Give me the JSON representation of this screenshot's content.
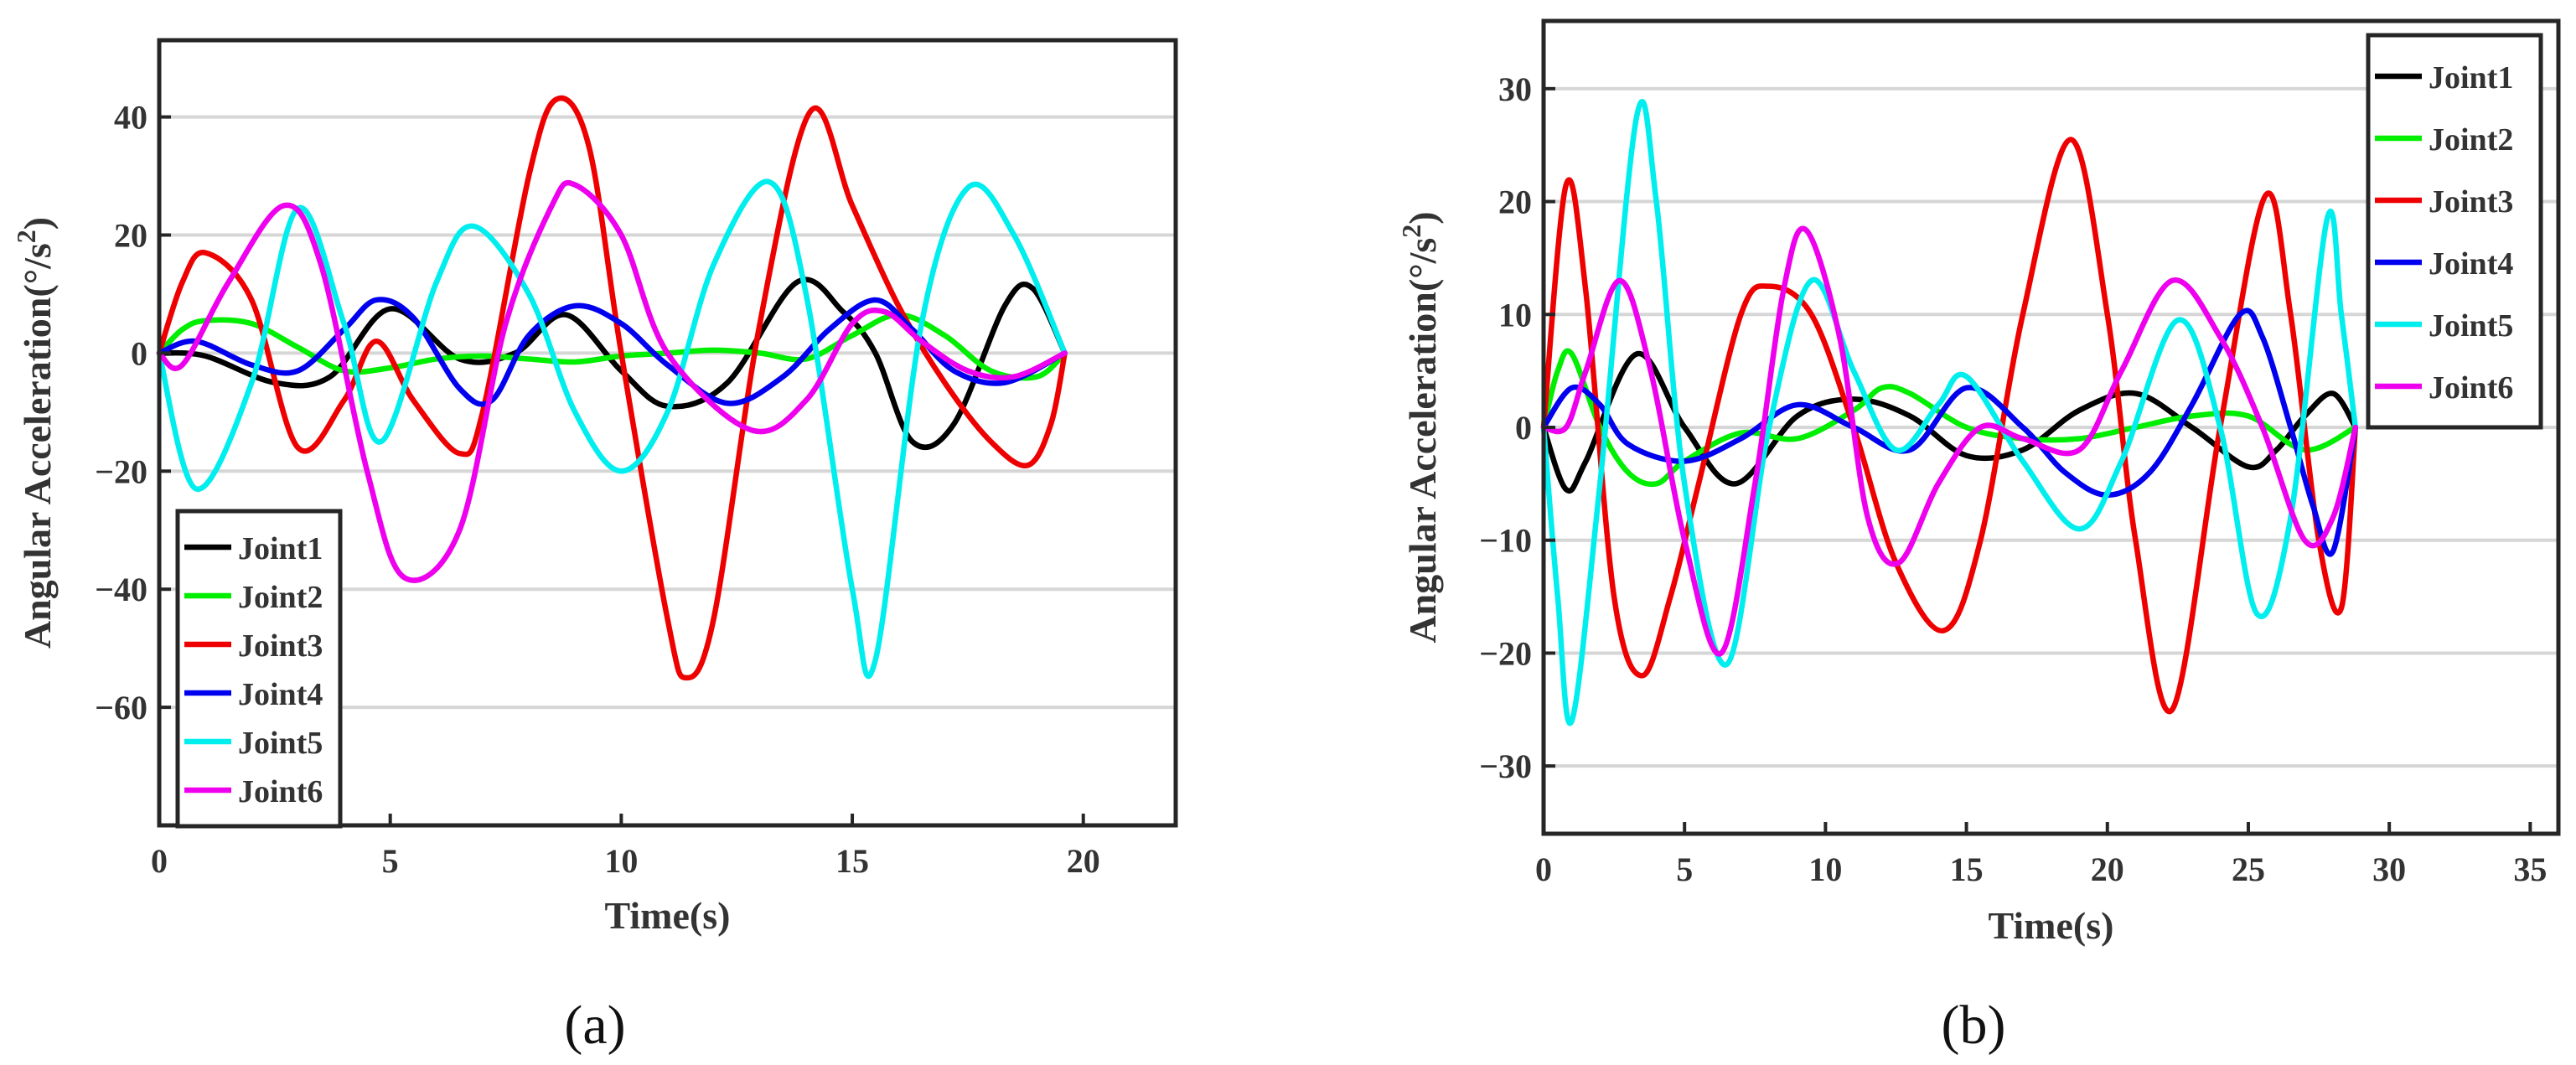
{
  "figure": {
    "panel_labels": [
      "(a)",
      "(b)"
    ]
  },
  "chart_data": [
    {
      "type": "line",
      "panel": "(a)",
      "title": "",
      "xlabel": "Time(s)",
      "ylabel": "Angular Acceleration(°/s²)",
      "ylabel_main": "Angular Acceleration(°/s",
      "ylabel_sup": "2",
      "ylabel_close": ")",
      "xlim": [
        0,
        22
      ],
      "ylim": [
        -80,
        53
      ],
      "xticks": [
        0,
        5,
        10,
        15,
        20
      ],
      "xtick_labels": [
        "0",
        "5",
        "10",
        "15",
        "20"
      ],
      "yticks": [
        -60,
        -40,
        -20,
        0,
        20,
        40
      ],
      "ytick_labels": [
        "−60",
        "−40",
        "−20",
        "0",
        "20",
        "40"
      ],
      "grid": "horizontal",
      "legend_position": "bottom-left",
      "series": [
        {
          "name": "Joint1",
          "color": "#000000",
          "x": [
            0,
            1,
            2.5,
            3.7,
            5,
            6.5,
            7.7,
            8.8,
            10,
            11,
            12.3,
            13.8,
            14.8,
            15.5,
            16.3,
            17.2,
            18.3,
            18.9,
            19.6
          ],
          "y": [
            0,
            -0.5,
            -5,
            -4,
            7.5,
            -1,
            0,
            6.5,
            -3,
            -9,
            -5,
            12,
            7,
            0,
            -15,
            -12,
            8,
            11,
            0
          ]
        },
        {
          "name": "Joint2",
          "color": "#00ee00",
          "x": [
            0,
            0.5,
            1,
            2,
            3,
            4,
            5,
            6,
            7,
            8,
            9,
            10,
            11,
            12,
            13,
            14,
            15,
            16,
            17,
            18,
            19,
            19.6
          ],
          "y": [
            0,
            4,
            5.5,
            5,
            1,
            -3,
            -2.5,
            -1,
            -0.5,
            -1,
            -1.5,
            -0.5,
            0,
            0.5,
            0,
            -1,
            3,
            6.5,
            3,
            -3,
            -4,
            0
          ]
        },
        {
          "name": "Joint3",
          "color": "#ee0000",
          "x": [
            0,
            0.5,
            1,
            2,
            3,
            4,
            4.7,
            5.5,
            6.5,
            7,
            8,
            8.6,
            9.3,
            10,
            11,
            11.4,
            12,
            13,
            14.1,
            15,
            16,
            17,
            18,
            18.8,
            19.3,
            19.6
          ],
          "y": [
            0,
            12,
            17,
            9,
            -16,
            -8,
            2,
            -8,
            -17,
            -10,
            30,
            43,
            35,
            0,
            -45,
            -55,
            -45,
            5,
            41,
            25,
            8,
            -5,
            -15,
            -19,
            -12,
            0
          ]
        },
        {
          "name": "Joint4",
          "color": "#0000ee",
          "x": [
            0,
            0.8,
            2,
            3,
            4,
            4.7,
            5.5,
            6.5,
            7.2,
            8,
            9,
            10,
            11,
            12.3,
            13.5,
            14.5,
            15.5,
            16.3,
            17.2,
            18.3,
            19.6
          ],
          "y": [
            0,
            2,
            -2,
            -3,
            4,
            9,
            6,
            -6,
            -8,
            3,
            8,
            5,
            -2,
            -8.5,
            -4,
            4,
            9,
            4,
            -3,
            -5,
            0
          ]
        },
        {
          "name": "Joint5",
          "color": "#00eeee",
          "x": [
            0,
            0.8,
            2,
            3,
            4,
            4.8,
            6,
            6.8,
            8,
            9,
            10,
            11,
            12,
            13.2,
            14,
            15,
            15.5,
            16.5,
            17.5,
            18.5,
            19.6
          ],
          "y": [
            0,
            -23,
            -5,
            24.5,
            5,
            -15,
            12,
            21.5,
            10,
            -10,
            -20,
            -10,
            15,
            29,
            10,
            -40,
            -52,
            5,
            28,
            20,
            0
          ]
        },
        {
          "name": "Joint6",
          "color": "#ee00ee",
          "x": [
            0,
            0.5,
            1.5,
            2.7,
            3.5,
            4.5,
            5.3,
            6.5,
            7.5,
            8.5,
            9,
            10,
            11,
            12.8,
            14,
            15,
            15.7,
            16.5,
            17.5,
            18.5,
            19.6
          ],
          "y": [
            0,
            -2,
            12,
            25,
            15,
            -20,
            -38,
            -30,
            5,
            25,
            28.5,
            20,
            0,
            -13,
            -8,
            5,
            7,
            2,
            -3,
            -4,
            0
          ]
        }
      ]
    },
    {
      "type": "line",
      "panel": "(b)",
      "title": "",
      "xlabel": "Time(s)",
      "ylabel": "Angular Acceleration(°/s²)",
      "ylabel_main": "Angular Acceleration(°/s",
      "ylabel_sup": "2",
      "ylabel_close": ")",
      "xlim": [
        0,
        36
      ],
      "ylim": [
        -36,
        36
      ],
      "xticks": [
        0,
        5,
        10,
        15,
        20,
        25,
        30,
        35
      ],
      "xtick_labels": [
        "0",
        "5",
        "10",
        "15",
        "20",
        "25",
        "30",
        "35"
      ],
      "yticks": [
        -30,
        -20,
        -10,
        0,
        10,
        20,
        30
      ],
      "ytick_labels": [
        "−30",
        "−20",
        "−10",
        "0",
        "10",
        "20",
        "30"
      ],
      "grid": "horizontal",
      "legend_position": "top-right",
      "series": [
        {
          "name": "Joint1",
          "color": "#000000",
          "x": [
            0,
            0.8,
            1.5,
            3.3,
            5,
            6.8,
            9,
            11,
            13,
            15,
            17,
            19,
            21,
            23,
            25,
            26,
            27,
            28,
            28.8
          ],
          "y": [
            0,
            -5.5,
            -3,
            6.5,
            0,
            -5,
            1,
            2.5,
            1,
            -2.5,
            -2,
            1.5,
            3,
            0,
            -3.5,
            -2,
            1,
            3,
            0
          ]
        },
        {
          "name": "Joint2",
          "color": "#00ee00",
          "x": [
            0,
            0.5,
            1,
            2,
            3,
            4,
            5,
            7,
            9,
            11,
            12,
            13,
            15,
            17,
            19,
            21,
            23,
            25,
            27,
            28.8
          ],
          "y": [
            0,
            5,
            6.5,
            0,
            -4,
            -5,
            -3,
            -0.5,
            -1,
            1.5,
            3.5,
            3,
            0,
            -1,
            -1,
            0,
            1,
            1,
            -2,
            0
          ]
        },
        {
          "name": "Joint3",
          "color": "#ee0000",
          "x": [
            0,
            0.8,
            1.5,
            2.5,
            3.5,
            4.5,
            5.5,
            7,
            8,
            9.5,
            11,
            12.5,
            14.2,
            15.5,
            17,
            18.7,
            20,
            21,
            22.3,
            24,
            25.6,
            26.5,
            27.5,
            28.3,
            28.8
          ],
          "y": [
            0,
            21.5,
            12,
            -15,
            -22,
            -15,
            -5,
            10,
            12.5,
            10,
            0,
            -12,
            -18,
            -10,
            10,
            25.5,
            10,
            -10,
            -25,
            0,
            20.5,
            10,
            -10,
            -16,
            0
          ]
        },
        {
          "name": "Joint4",
          "color": "#0000ee",
          "x": [
            0,
            1,
            2,
            3,
            5,
            7,
            9,
            11,
            13,
            15,
            17,
            18.5,
            20,
            21.5,
            23,
            24.7,
            25.5,
            26.5,
            27.3,
            28,
            28.8
          ],
          "y": [
            0,
            3.5,
            2,
            -1.5,
            -3,
            -1,
            2,
            0,
            -2,
            3.5,
            0,
            -4,
            -6,
            -4,
            2,
            10,
            8,
            0,
            -7,
            -11,
            0
          ]
        },
        {
          "name": "Joint5",
          "color": "#00eeee",
          "x": [
            0,
            0.5,
            1,
            2,
            3.3,
            4,
            5,
            6.5,
            8,
            9.5,
            11,
            12.5,
            14,
            15,
            17,
            19,
            20.5,
            22.5,
            24,
            25.3,
            26.5,
            27.8,
            28.3,
            28.8
          ],
          "y": [
            0,
            -15,
            -26,
            -5,
            27.5,
            20,
            -5,
            -21,
            0,
            13,
            5,
            -2,
            2,
            4.5,
            -3,
            -9,
            -3,
            9.5,
            0,
            -16.5,
            -8,
            18.5,
            10,
            0
          ]
        },
        {
          "name": "Joint6",
          "color": "#ee00ee",
          "x": [
            0,
            0.8,
            1.5,
            2.7,
            3.8,
            5,
            6.3,
            7.5,
            8.5,
            9.3,
            10.5,
            11.5,
            12.6,
            14,
            15.5,
            17,
            19,
            20.5,
            22.3,
            24,
            25.5,
            27,
            28,
            28.8
          ],
          "y": [
            0,
            0,
            5,
            13,
            5,
            -10,
            -20,
            -5,
            12,
            17.5,
            8,
            -8,
            -12,
            -5,
            0,
            -1,
            -2,
            5,
            13,
            8,
            0,
            -10,
            -8,
            0
          ]
        }
      ]
    }
  ]
}
